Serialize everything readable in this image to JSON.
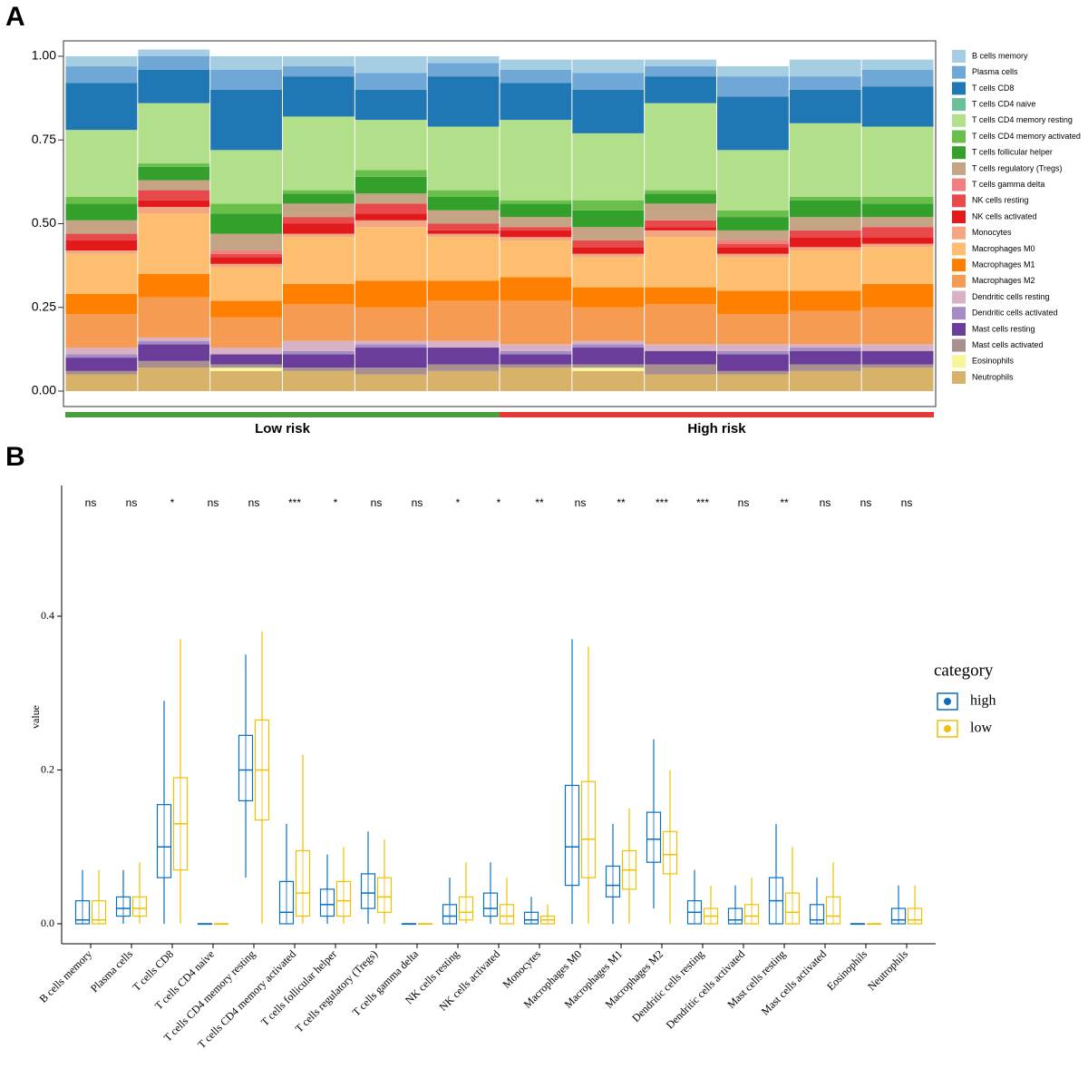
{
  "chart_data": [
    {
      "type": "stacked_bar",
      "panel_label": "A",
      "categories": [
        null,
        null,
        null,
        null,
        null,
        null,
        null,
        null,
        null,
        null,
        null,
        null
      ],
      "ylim": [
        0,
        1
      ],
      "yticks": [
        {
          "value": 0,
          "label": "0.00"
        },
        {
          "value": 0.25,
          "label": "0.25"
        },
        {
          "value": 0.5,
          "label": "0.50"
        },
        {
          "value": 0.75,
          "label": "0.75"
        },
        {
          "value": 1,
          "label": "1.00"
        }
      ],
      "groups": [
        {
          "name": "Low risk",
          "color": "#4a9e3f"
        },
        {
          "name": "High risk",
          "color": "#e53935"
        }
      ],
      "series": [
        {
          "name": "B cells memory",
          "color": "#a6cee3",
          "values": [
            0.03,
            0.02,
            0.04,
            0.03,
            0.05,
            0.02,
            0.03,
            0.04,
            0.02,
            0.03,
            0.05,
            0.03
          ]
        },
        {
          "name": "Plasma cells",
          "color": "#6fa8d6",
          "values": [
            0.05,
            0.04,
            0.06,
            0.03,
            0.05,
            0.04,
            0.04,
            0.05,
            0.03,
            0.06,
            0.04,
            0.05
          ]
        },
        {
          "name": "T cells CD8",
          "color": "#1f78b4",
          "values": [
            0.14,
            0.1,
            0.18,
            0.12,
            0.09,
            0.15,
            0.11,
            0.13,
            0.08,
            0.16,
            0.1,
            0.12
          ]
        },
        {
          "name": "T cells CD4 naive",
          "color": "#6bbf9b",
          "values": [
            0,
            0,
            0,
            0,
            0,
            0,
            0,
            0,
            0,
            0,
            0,
            0
          ]
        },
        {
          "name": "T cells CD4 memory resting",
          "color": "#b2df8a",
          "values": [
            0.2,
            0.18,
            0.16,
            0.22,
            0.15,
            0.19,
            0.24,
            0.2,
            0.26,
            0.18,
            0.22,
            0.21
          ]
        },
        {
          "name": "T cells CD4 memory activated",
          "color": "#6abf4b",
          "values": [
            0.02,
            0.01,
            0.03,
            0.01,
            0.02,
            0.02,
            0.01,
            0.03,
            0.01,
            0.02,
            0.01,
            0.02
          ]
        },
        {
          "name": "T cells follicular helper",
          "color": "#33a02c",
          "values": [
            0.05,
            0.04,
            0.06,
            0.03,
            0.05,
            0.04,
            0.04,
            0.05,
            0.03,
            0.04,
            0.05,
            0.04
          ]
        },
        {
          "name": "T cells regulatory (Tregs)",
          "color": "#c4a484",
          "values": [
            0.04,
            0.03,
            0.05,
            0.04,
            0.03,
            0.04,
            0.03,
            0.04,
            0.05,
            0.03,
            0.04,
            0.03
          ]
        },
        {
          "name": "T cells gamma delta",
          "color": "#f08080",
          "values": [
            0,
            0,
            0.01,
            0,
            0,
            0,
            0,
            0,
            0,
            0.01,
            0,
            0
          ]
        },
        {
          "name": "NK cells resting",
          "color": "#e8494b",
          "values": [
            0.02,
            0.03,
            0.01,
            0.02,
            0.03,
            0.02,
            0.01,
            0.02,
            0.02,
            0.01,
            0.02,
            0.03
          ]
        },
        {
          "name": "NK cells activated",
          "color": "#e31a1c",
          "values": [
            0.03,
            0.02,
            0.02,
            0.03,
            0.02,
            0.01,
            0.02,
            0.02,
            0.01,
            0.02,
            0.03,
            0.02
          ]
        },
        {
          "name": "Monocytes",
          "color": "#f4a582",
          "values": [
            0.01,
            0.02,
            0.01,
            0.01,
            0.02,
            0.01,
            0.01,
            0.01,
            0.02,
            0.01,
            0.01,
            0.01
          ]
        },
        {
          "name": "Macrophages M0",
          "color": "#fdbf6f",
          "values": [
            0.12,
            0.18,
            0.1,
            0.14,
            0.16,
            0.13,
            0.11,
            0.09,
            0.15,
            0.1,
            0.12,
            0.11
          ]
        },
        {
          "name": "Macrophages M1",
          "color": "#ff7f00",
          "values": [
            0.06,
            0.07,
            0.05,
            0.06,
            0.08,
            0.06,
            0.07,
            0.06,
            0.05,
            0.07,
            0.06,
            0.07
          ]
        },
        {
          "name": "Macrophages M2",
          "color": "#f59b52",
          "values": [
            0.1,
            0.12,
            0.09,
            0.11,
            0.1,
            0.12,
            0.13,
            0.1,
            0.12,
            0.09,
            0.1,
            0.11
          ]
        },
        {
          "name": "Dendritic cells resting",
          "color": "#d8b1c4",
          "values": [
            0.02,
            0.01,
            0.02,
            0.03,
            0.01,
            0.02,
            0.02,
            0.01,
            0.02,
            0.02,
            0.01,
            0.02
          ]
        },
        {
          "name": "Dendritic cells activated",
          "color": "#a68cc4",
          "values": [
            0.01,
            0.01,
            0,
            0.01,
            0.01,
            0,
            0.01,
            0.01,
            0,
            0.01,
            0.01,
            0
          ]
        },
        {
          "name": "Mast cells resting",
          "color": "#6a3d9a",
          "values": [
            0.04,
            0.05,
            0.03,
            0.04,
            0.06,
            0.05,
            0.03,
            0.05,
            0.04,
            0.05,
            0.04,
            0.04
          ]
        },
        {
          "name": "Mast cells activated",
          "color": "#a89090",
          "values": [
            0.01,
            0.02,
            0.01,
            0.01,
            0.02,
            0.02,
            0.01,
            0.01,
            0.03,
            0.01,
            0.02,
            0.01
          ]
        },
        {
          "name": "Eosinophils",
          "color": "#f5f59a",
          "values": [
            0,
            0,
            0.01,
            0,
            0,
            0,
            0,
            0.01,
            0,
            0,
            0,
            0
          ]
        },
        {
          "name": "Neutrophils",
          "color": "#d9b26a",
          "values": [
            0.05,
            0.07,
            0.06,
            0.06,
            0.05,
            0.06,
            0.07,
            0.06,
            0.05,
            0.05,
            0.06,
            0.07
          ]
        }
      ]
    },
    {
      "type": "box",
      "panel_label": "B",
      "y_label": "value",
      "legend_title": "category",
      "categories": [
        "B cells memory",
        "Plasma cells",
        "T cells CD8",
        "T cells CD4 naive",
        "T cells CD4 memory resting",
        "T cells CD4 memory activated",
        "T cells follicular helper",
        "T cells regulatory (Tregs)",
        "T cells gamma delta",
        "NK cells resting",
        "NK cells activated",
        "Monocytes",
        "Macrophages M0",
        "Macrophages M1",
        "Macrophages M2",
        "Dendritic cells resting",
        "Dendritic cells activated",
        "Mast cells resting",
        "Mast cells activated",
        "Eosinophils",
        "Neutrophils"
      ],
      "significance": [
        "ns",
        "ns",
        "*",
        "ns",
        "ns",
        "***",
        "*",
        "ns",
        "ns",
        "*",
        "*",
        "**",
        "ns",
        "**",
        "***",
        "***",
        "ns",
        "**",
        "ns",
        "ns",
        "ns"
      ],
      "ylim": [
        -0.02,
        0.56
      ],
      "yticks": [
        {
          "value": 0,
          "label": "0.0"
        },
        {
          "value": 0.2,
          "label": "0.2"
        },
        {
          "value": 0.4,
          "label": "0.4"
        }
      ],
      "series": [
        {
          "name": "high",
          "color": "#0b6fc0",
          "min": [
            0,
            0,
            0,
            0,
            0.06,
            0,
            0,
            0,
            0,
            0,
            0,
            0,
            0,
            0,
            0.02,
            0,
            0,
            0,
            0,
            0,
            0
          ],
          "q1": [
            0,
            0.01,
            0.06,
            0,
            0.16,
            0,
            0.01,
            0.02,
            0,
            0,
            0.01,
            0,
            0.05,
            0.035,
            0.08,
            0,
            0,
            0,
            0,
            0,
            0
          ],
          "median": [
            0.005,
            0.02,
            0.1,
            0,
            0.2,
            0.015,
            0.025,
            0.04,
            0,
            0.01,
            0.02,
            0.005,
            0.1,
            0.05,
            0.11,
            0.015,
            0.005,
            0.03,
            0.005,
            0,
            0.005
          ],
          "q3": [
            0.03,
            0.035,
            0.155,
            0,
            0.245,
            0.055,
            0.045,
            0.065,
            0,
            0.025,
            0.04,
            0.015,
            0.18,
            0.075,
            0.145,
            0.03,
            0.02,
            0.06,
            0.025,
            0,
            0.02
          ],
          "max": [
            0.07,
            0.07,
            0.29,
            0,
            0.35,
            0.13,
            0.09,
            0.12,
            0,
            0.06,
            0.08,
            0.035,
            0.37,
            0.13,
            0.24,
            0.07,
            0.05,
            0.13,
            0.06,
            0,
            0.05
          ]
        },
        {
          "name": "low",
          "color": "#efc000",
          "min": [
            0,
            0,
            0,
            0,
            0,
            0,
            0,
            0,
            0,
            0,
            0,
            0,
            0,
            0,
            0,
            0,
            0,
            0,
            0,
            0,
            0
          ],
          "q1": [
            0,
            0.01,
            0.07,
            0,
            0.135,
            0.01,
            0.01,
            0.015,
            0,
            0.005,
            0,
            0,
            0.06,
            0.045,
            0.065,
            0,
            0,
            0,
            0,
            0,
            0
          ],
          "median": [
            0.005,
            0.02,
            0.13,
            0,
            0.2,
            0.04,
            0.03,
            0.035,
            0,
            0.015,
            0.01,
            0.005,
            0.11,
            0.07,
            0.09,
            0.01,
            0.01,
            0.015,
            0.01,
            0,
            0.005
          ],
          "q3": [
            0.03,
            0.035,
            0.19,
            0,
            0.265,
            0.095,
            0.055,
            0.06,
            0,
            0.035,
            0.025,
            0.01,
            0.185,
            0.095,
            0.12,
            0.02,
            0.025,
            0.04,
            0.035,
            0,
            0.02
          ],
          "max": [
            0.07,
            0.08,
            0.37,
            0,
            0.38,
            0.22,
            0.1,
            0.11,
            0,
            0.08,
            0.06,
            0.025,
            0.36,
            0.15,
            0.2,
            0.05,
            0.06,
            0.1,
            0.08,
            0,
            0.05
          ]
        }
      ]
    }
  ]
}
